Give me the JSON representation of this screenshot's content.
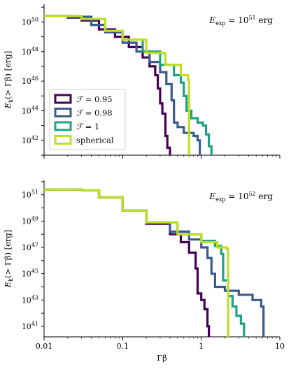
{
  "chart_data": [
    {
      "type": "line",
      "step": true,
      "annotation": "E_exp = 10^51 erg",
      "annotation_parts": {
        "base": "E",
        "sub": "exp",
        "eq": " = 10",
        "sup": "51",
        "unit": " erg"
      },
      "ylabel": "E_k(> Γβ) [erg]",
      "xlabel": "",
      "xscale": "log",
      "yscale": "log",
      "xlim": [
        0.01,
        10
      ],
      "ylim": [
        1e+41,
        1e+51
      ],
      "xticks": [
        "0.01",
        "0.1",
        "1",
        "10"
      ],
      "yticks": [
        {
          "base": "10",
          "exp": "42",
          "v": 42
        },
        {
          "base": "10",
          "exp": "44",
          "v": 44
        },
        {
          "base": "10",
          "exp": "46",
          "v": 46
        },
        {
          "base": "10",
          "exp": "48",
          "v": 48
        },
        {
          "base": "10",
          "exp": "50",
          "v": 50
        }
      ],
      "legend": "center-left",
      "series": [
        {
          "name": "F = 0.95",
          "label_parts": {
            "sym": "ℱ",
            "rest": " = 0.95"
          },
          "color": "#440154",
          "points": [
            [
              0.01,
              50.4
            ],
            [
              0.02,
              50.3
            ],
            [
              0.03,
              50.1
            ],
            [
              0.05,
              49.5
            ],
            [
              0.08,
              49.0
            ],
            [
              0.12,
              48.3
            ],
            [
              0.18,
              47.6
            ],
            [
              0.22,
              47.0
            ],
            [
              0.26,
              46.4
            ],
            [
              0.28,
              45.5
            ],
            [
              0.3,
              44.5
            ],
            [
              0.32,
              43.8
            ],
            [
              0.35,
              42.3
            ],
            [
              0.37,
              41.5
            ],
            [
              0.4,
              41.0
            ]
          ]
        },
        {
          "name": "F = 0.98",
          "label_parts": {
            "sym": "ℱ",
            "rest": " = 0.98"
          },
          "color": "#3b5b8f",
          "points": [
            [
              0.01,
              50.4
            ],
            [
              0.02,
              50.35
            ],
            [
              0.04,
              49.8
            ],
            [
              0.06,
              49.3
            ],
            [
              0.1,
              48.6
            ],
            [
              0.15,
              48.0
            ],
            [
              0.22,
              47.3
            ],
            [
              0.3,
              46.6
            ],
            [
              0.36,
              45.8
            ],
            [
              0.42,
              44.7
            ],
            [
              0.45,
              43.2
            ],
            [
              0.5,
              42.9
            ],
            [
              0.6,
              42.5
            ],
            [
              0.8,
              42.3
            ],
            [
              0.9,
              42.0
            ],
            [
              0.96,
              41.0
            ]
          ]
        },
        {
          "name": "F = 1",
          "label_parts": {
            "sym": "ℱ",
            "rest": " = 1"
          },
          "color": "#1fa187",
          "points": [
            [
              0.01,
              50.4
            ],
            [
              0.03,
              50.2
            ],
            [
              0.06,
              49.4
            ],
            [
              0.1,
              48.8
            ],
            [
              0.18,
              48.0
            ],
            [
              0.3,
              47.1
            ],
            [
              0.45,
              46.4
            ],
            [
              0.55,
              45.9
            ],
            [
              0.6,
              45.0
            ],
            [
              0.65,
              44.0
            ],
            [
              0.75,
              43.5
            ],
            [
              0.9,
              43.2
            ],
            [
              1.05,
              43.0
            ],
            [
              1.15,
              42.4
            ],
            [
              1.25,
              41.6
            ],
            [
              1.35,
              41.0
            ]
          ]
        },
        {
          "name": "spherical",
          "label_parts": {
            "sym": "",
            "rest": "spherical"
          },
          "color": "#bddf26",
          "points": [
            [
              0.01,
              50.4
            ],
            [
              0.03,
              50.2
            ],
            [
              0.06,
              49.4
            ],
            [
              0.1,
              48.8
            ],
            [
              0.2,
              47.9
            ],
            [
              0.35,
              47.1
            ],
            [
              0.55,
              46.4
            ],
            [
              0.68,
              46.1
            ],
            [
              0.7,
              41.0
            ]
          ]
        }
      ]
    },
    {
      "type": "line",
      "step": true,
      "annotation": "E_exp = 10^52 erg",
      "annotation_parts": {
        "base": "E",
        "sub": "exp",
        "eq": " = 10",
        "sup": "52",
        "unit": " erg"
      },
      "ylabel": "E_k(> Γβ) [erg]",
      "xlabel": "Γβ",
      "xscale": "log",
      "yscale": "log",
      "xlim": [
        0.01,
        10
      ],
      "ylim": [
        1e+40,
        1e+52
      ],
      "xticks": [
        "0.01",
        "0.1",
        "1",
        "10"
      ],
      "yticks": [
        {
          "base": "10",
          "exp": "41",
          "v": 41
        },
        {
          "base": "10",
          "exp": "43",
          "v": 43
        },
        {
          "base": "10",
          "exp": "45",
          "v": 45
        },
        {
          "base": "10",
          "exp": "47",
          "v": 47
        },
        {
          "base": "10",
          "exp": "49",
          "v": 49
        },
        {
          "base": "10",
          "exp": "51",
          "v": 51
        }
      ],
      "series": [
        {
          "name": "F = 0.95",
          "color": "#440154",
          "points": [
            [
              0.01,
              51.4
            ],
            [
              0.03,
              51.35
            ],
            [
              0.05,
              50.8
            ],
            [
              0.1,
              49.8
            ],
            [
              0.2,
              48.8
            ],
            [
              0.4,
              48.0
            ],
            [
              0.55,
              47.4
            ],
            [
              0.7,
              46.6
            ],
            [
              0.85,
              45.4
            ],
            [
              0.9,
              43.5
            ],
            [
              1.0,
              43.0
            ],
            [
              1.1,
              42.3
            ],
            [
              1.2,
              41.0
            ],
            [
              1.25,
              40.2
            ]
          ]
        },
        {
          "name": "F = 0.98",
          "color": "#3b5b8f",
          "points": [
            [
              0.01,
              51.4
            ],
            [
              0.03,
              51.35
            ],
            [
              0.05,
              50.8
            ],
            [
              0.1,
              49.8
            ],
            [
              0.2,
              48.9
            ],
            [
              0.4,
              48.2
            ],
            [
              0.7,
              47.6
            ],
            [
              1.0,
              47.0
            ],
            [
              1.2,
              46.2
            ],
            [
              1.35,
              45.0
            ],
            [
              1.5,
              44.0
            ],
            [
              2.0,
              43.7
            ],
            [
              3.0,
              43.4
            ],
            [
              4.5,
              43.0
            ],
            [
              5.8,
              42.5
            ],
            [
              6.2,
              40.2
            ]
          ]
        },
        {
          "name": "F = 1",
          "color": "#1fa187",
          "points": [
            [
              0.01,
              51.4
            ],
            [
              0.03,
              51.35
            ],
            [
              0.05,
              50.8
            ],
            [
              0.1,
              49.8
            ],
            [
              0.2,
              48.9
            ],
            [
              0.5,
              48.0
            ],
            [
              1.0,
              47.5
            ],
            [
              1.5,
              47.1
            ],
            [
              1.8,
              46.5
            ],
            [
              1.9,
              44.5
            ],
            [
              2.2,
              43.3
            ],
            [
              2.5,
              42.5
            ],
            [
              2.8,
              41.8
            ],
            [
              3.2,
              41.2
            ],
            [
              3.5,
              40.2
            ]
          ]
        },
        {
          "name": "spherical",
          "color": "#bddf26",
          "points": [
            [
              0.01,
              51.4
            ],
            [
              0.03,
              51.35
            ],
            [
              0.05,
              50.8
            ],
            [
              0.1,
              49.8
            ],
            [
              0.2,
              48.9
            ],
            [
              0.5,
              48.0
            ],
            [
              1.0,
              47.4
            ],
            [
              1.6,
              47.0
            ],
            [
              2.1,
              46.9
            ],
            [
              2.2,
              40.2
            ]
          ]
        }
      ]
    }
  ]
}
